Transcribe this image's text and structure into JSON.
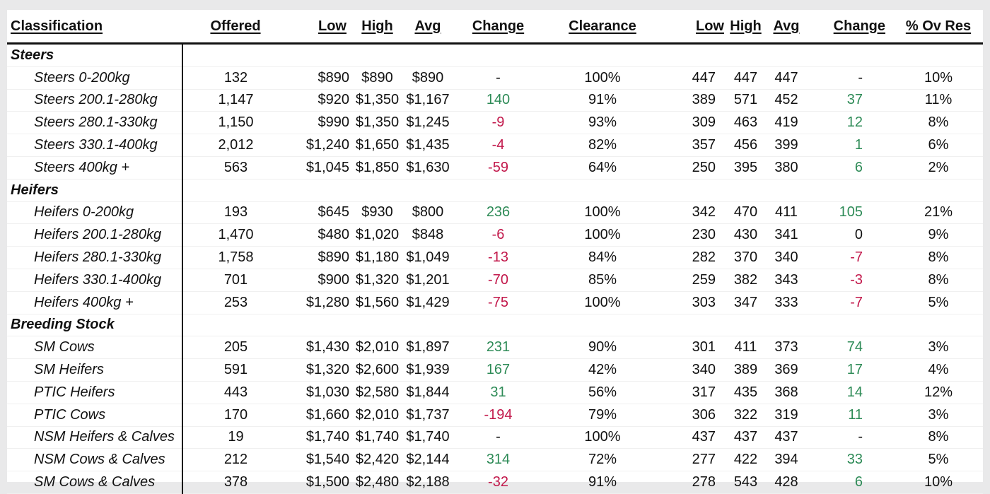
{
  "headers": {
    "classification": "Classification",
    "offered": "Offered",
    "low": "Low",
    "high": "High",
    "avg": "Avg",
    "change": "Change",
    "clearance": "Clearance",
    "low2": "Low",
    "high2": "High",
    "avg2": "Avg",
    "change2": "Change",
    "ov_res": "% Ov Res"
  },
  "colors": {
    "positive": "#2e8b57",
    "negative": "#c2184b",
    "neutral": "#111111"
  },
  "rows": [
    {
      "type": "category",
      "label": "Steers"
    },
    {
      "type": "item",
      "label": "Steers 0-200kg",
      "offered": "132",
      "low": "$890",
      "high": "$890",
      "avg": "$890",
      "change": "-",
      "change_sign": "neu",
      "clearance": "100%",
      "low2": "447",
      "high2": "447",
      "avg2": "447",
      "change2": "-",
      "change2_sign": "neu",
      "ov_res": "10%"
    },
    {
      "type": "item",
      "label": "Steers 200.1-280kg",
      "offered": "1,147",
      "low": "$920",
      "high": "$1,350",
      "avg": "$1,167",
      "change": "140",
      "change_sign": "pos",
      "clearance": "91%",
      "low2": "389",
      "high2": "571",
      "avg2": "452",
      "change2": "37",
      "change2_sign": "pos",
      "ov_res": "11%"
    },
    {
      "type": "item",
      "label": "Steers 280.1-330kg",
      "offered": "1,150",
      "low": "$990",
      "high": "$1,350",
      "avg": "$1,245",
      "change": "-9",
      "change_sign": "neg",
      "clearance": "93%",
      "low2": "309",
      "high2": "463",
      "avg2": "419",
      "change2": "12",
      "change2_sign": "pos",
      "ov_res": "8%"
    },
    {
      "type": "item",
      "label": "Steers 330.1-400kg",
      "offered": "2,012",
      "low": "$1,240",
      "high": "$1,650",
      "avg": "$1,435",
      "change": "-4",
      "change_sign": "neg",
      "clearance": "82%",
      "low2": "357",
      "high2": "456",
      "avg2": "399",
      "change2": "1",
      "change2_sign": "pos",
      "ov_res": "6%"
    },
    {
      "type": "item",
      "label": "Steers 400kg +",
      "offered": "563",
      "low": "$1,045",
      "high": "$1,850",
      "avg": "$1,630",
      "change": "-59",
      "change_sign": "neg",
      "clearance": "64%",
      "low2": "250",
      "high2": "395",
      "avg2": "380",
      "change2": "6",
      "change2_sign": "pos",
      "ov_res": "2%"
    },
    {
      "type": "category",
      "label": "Heifers"
    },
    {
      "type": "item",
      "label": "Heifers 0-200kg",
      "offered": "193",
      "low": "$645",
      "high": "$930",
      "avg": "$800",
      "change": "236",
      "change_sign": "pos",
      "clearance": "100%",
      "low2": "342",
      "high2": "470",
      "avg2": "411",
      "change2": "105",
      "change2_sign": "pos",
      "ov_res": "21%"
    },
    {
      "type": "item",
      "label": "Heifers 200.1-280kg",
      "offered": "1,470",
      "low": "$480",
      "high": "$1,020",
      "avg": "$848",
      "change": "-6",
      "change_sign": "neg",
      "clearance": "100%",
      "low2": "230",
      "high2": "430",
      "avg2": "341",
      "change2": "0",
      "change2_sign": "neu",
      "ov_res": "9%"
    },
    {
      "type": "item",
      "label": "Heifers 280.1-330kg",
      "offered": "1,758",
      "low": "$890",
      "high": "$1,180",
      "avg": "$1,049",
      "change": "-13",
      "change_sign": "neg",
      "clearance": "84%",
      "low2": "282",
      "high2": "370",
      "avg2": "340",
      "change2": "-7",
      "change2_sign": "neg",
      "ov_res": "8%"
    },
    {
      "type": "item",
      "label": "Heifers 330.1-400kg",
      "offered": "701",
      "low": "$900",
      "high": "$1,320",
      "avg": "$1,201",
      "change": "-70",
      "change_sign": "neg",
      "clearance": "85%",
      "low2": "259",
      "high2": "382",
      "avg2": "343",
      "change2": "-3",
      "change2_sign": "neg",
      "ov_res": "8%"
    },
    {
      "type": "item",
      "label": "Heifers 400kg +",
      "offered": "253",
      "low": "$1,280",
      "high": "$1,560",
      "avg": "$1,429",
      "change": "-75",
      "change_sign": "neg",
      "clearance": "100%",
      "low2": "303",
      "high2": "347",
      "avg2": "333",
      "change2": "-7",
      "change2_sign": "neg",
      "ov_res": "5%"
    },
    {
      "type": "category",
      "label": "Breeding Stock"
    },
    {
      "type": "item",
      "label": "SM Cows",
      "offered": "205",
      "low": "$1,430",
      "high": "$2,010",
      "avg": "$1,897",
      "change": "231",
      "change_sign": "pos",
      "clearance": "90%",
      "low2": "301",
      "high2": "411",
      "avg2": "373",
      "change2": "74",
      "change2_sign": "pos",
      "ov_res": "3%"
    },
    {
      "type": "item",
      "label": "SM Heifers",
      "offered": "591",
      "low": "$1,320",
      "high": "$2,600",
      "avg": "$1,939",
      "change": "167",
      "change_sign": "pos",
      "clearance": "42%",
      "low2": "340",
      "high2": "389",
      "avg2": "369",
      "change2": "17",
      "change2_sign": "pos",
      "ov_res": "4%"
    },
    {
      "type": "item",
      "label": "PTIC Heifers",
      "offered": "443",
      "low": "$1,030",
      "high": "$2,580",
      "avg": "$1,844",
      "change": "31",
      "change_sign": "pos",
      "clearance": "56%",
      "low2": "317",
      "high2": "435",
      "avg2": "368",
      "change2": "14",
      "change2_sign": "pos",
      "ov_res": "12%"
    },
    {
      "type": "item",
      "label": "PTIC Cows",
      "offered": "170",
      "low": "$1,660",
      "high": "$2,010",
      "avg": "$1,737",
      "change": "-194",
      "change_sign": "neg",
      "clearance": "79%",
      "low2": "306",
      "high2": "322",
      "avg2": "319",
      "change2": "11",
      "change2_sign": "pos",
      "ov_res": "3%"
    },
    {
      "type": "item",
      "label": "NSM Heifers & Calves",
      "offered": "19",
      "low": "$1,740",
      "high": "$1,740",
      "avg": "$1,740",
      "change": "-",
      "change_sign": "neu",
      "clearance": "100%",
      "low2": "437",
      "high2": "437",
      "avg2": "437",
      "change2": "-",
      "change2_sign": "neu",
      "ov_res": "8%"
    },
    {
      "type": "item",
      "label": "NSM Cows & Calves",
      "offered": "212",
      "low": "$1,540",
      "high": "$2,420",
      "avg": "$2,144",
      "change": "314",
      "change_sign": "pos",
      "clearance": "72%",
      "low2": "277",
      "high2": "422",
      "avg2": "394",
      "change2": "33",
      "change2_sign": "pos",
      "ov_res": "5%"
    },
    {
      "type": "item",
      "label": "SM Cows & Calves",
      "offered": "378",
      "low": "$1,500",
      "high": "$2,480",
      "avg": "$2,188",
      "change": "-32",
      "change_sign": "neg",
      "clearance": "91%",
      "low2": "278",
      "high2": "543",
      "avg2": "428",
      "change2": "6",
      "change2_sign": "pos",
      "ov_res": "10%"
    }
  ]
}
